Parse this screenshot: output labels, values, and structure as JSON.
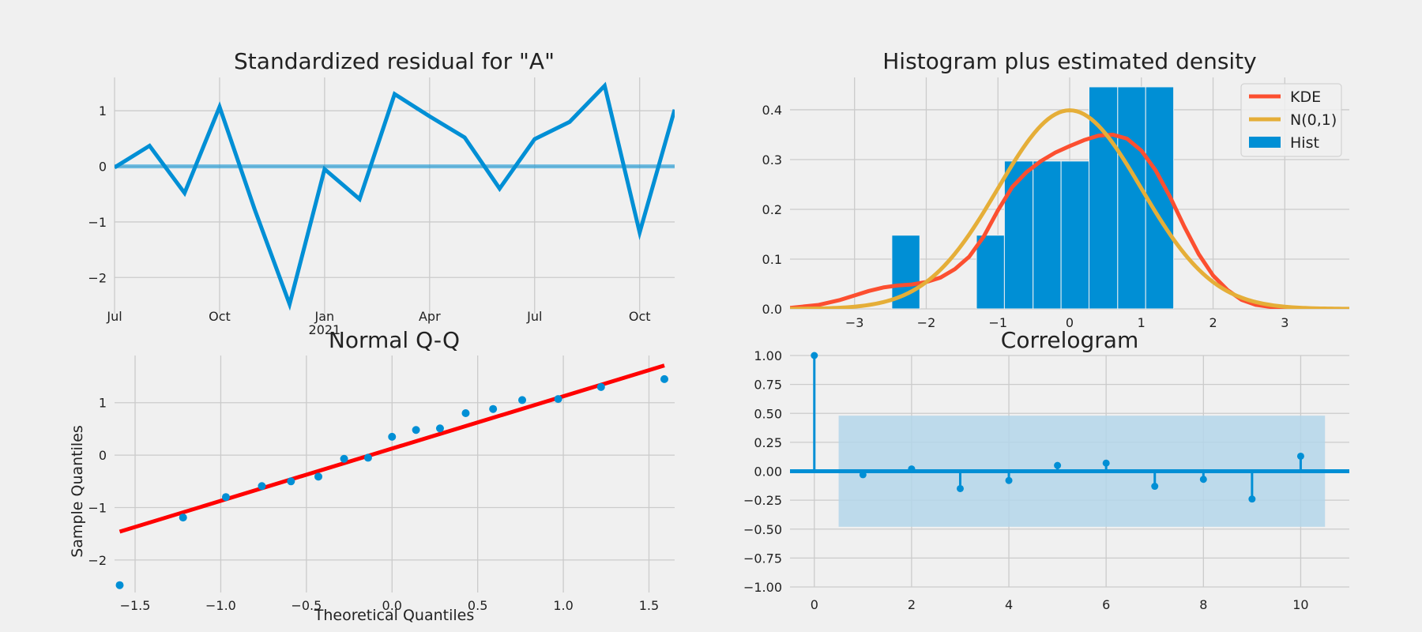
{
  "colors": {
    "background": "#f0f0f0",
    "grid": "#cbcbcb",
    "blue": "#008fd5",
    "kde": "#fc4f30",
    "normal": "#e5ae38",
    "qqline": "#ff0000",
    "confband": "#b4d6ea"
  },
  "chart_data": [
    {
      "id": "resid",
      "type": "line",
      "title": "Standardized residual for \"A\"",
      "x": [
        "2020-07",
        "2020-08",
        "2020-09",
        "2020-10",
        "2020-11",
        "2020-12",
        "2021-01",
        "2021-02",
        "2021-03",
        "2021-04",
        "2021-05",
        "2021-06",
        "2021-07",
        "2021-08",
        "2021-09",
        "2021-10",
        "2021-11"
      ],
      "values": [
        -0.02,
        0.37,
        -0.48,
        1.07,
        -0.77,
        -2.48,
        -0.05,
        -0.59,
        1.3,
        0.9,
        0.52,
        -0.4,
        0.49,
        0.8,
        1.45,
        -1.19,
        1.02
      ],
      "zero_line": 0,
      "xlim": [
        "2020-07",
        "2021-11"
      ],
      "ylim": [
        -2.65,
        1.6
      ],
      "xticks": [
        {
          "pos": 0,
          "label": "Jul",
          "sub": ""
        },
        {
          "pos": 3,
          "label": "Oct",
          "sub": ""
        },
        {
          "pos": 6,
          "label": "Jan",
          "sub": "2021"
        },
        {
          "pos": 9,
          "label": "Apr",
          "sub": ""
        },
        {
          "pos": 12,
          "label": "Jul",
          "sub": ""
        },
        {
          "pos": 15,
          "label": "Oct",
          "sub": ""
        }
      ],
      "yticks": [
        {
          "v": 1,
          "label": "1"
        },
        {
          "v": 0,
          "label": "0"
        },
        {
          "v": -1,
          "label": "−1"
        },
        {
          "v": -2,
          "label": "−2"
        }
      ],
      "grid": true
    },
    {
      "id": "hist",
      "type": "bar",
      "title": "Histogram plus estimated density",
      "xlim": [
        -3.9,
        3.9
      ],
      "ylim": [
        0,
        0.465
      ],
      "xticks": [
        {
          "v": -3,
          "label": "−3"
        },
        {
          "v": -2,
          "label": "−2"
        },
        {
          "v": -1,
          "label": "−1"
        },
        {
          "v": 0,
          "label": "0"
        },
        {
          "v": 1,
          "label": "1"
        },
        {
          "v": 2,
          "label": "2"
        },
        {
          "v": 3,
          "label": "3"
        }
      ],
      "yticks": [
        {
          "v": 0,
          "label": "0.0"
        },
        {
          "v": 0.1,
          "label": "0.1"
        },
        {
          "v": 0.2,
          "label": "0.2"
        },
        {
          "v": 0.3,
          "label": "0.3"
        },
        {
          "v": 0.4,
          "label": "0.4"
        }
      ],
      "bins": [
        {
          "left": -2.48,
          "right": -2.09,
          "height": 0.148
        },
        {
          "left": -1.3,
          "right": -0.91,
          "height": 0.148
        },
        {
          "left": -0.91,
          "right": -0.51,
          "height": 0.297
        },
        {
          "left": -0.51,
          "right": -0.12,
          "height": 0.297
        },
        {
          "left": -0.12,
          "right": 0.27,
          "height": 0.297
        },
        {
          "left": 0.27,
          "right": 0.67,
          "height": 0.446
        },
        {
          "left": 0.67,
          "right": 1.06,
          "height": 0.446
        },
        {
          "left": 1.06,
          "right": 1.45,
          "height": 0.446
        }
      ],
      "kde": {
        "x": [
          -3.9,
          -3.5,
          -3.2,
          -3.0,
          -2.8,
          -2.6,
          -2.4,
          -2.2,
          -2.0,
          -1.8,
          -1.6,
          -1.4,
          -1.2,
          -1.0,
          -0.8,
          -0.6,
          -0.4,
          -0.2,
          0.0,
          0.2,
          0.4,
          0.6,
          0.8,
          1.0,
          1.2,
          1.4,
          1.6,
          1.8,
          2.0,
          2.2,
          2.4,
          2.6,
          2.8,
          3.0,
          3.3,
          3.6,
          3.9
        ],
        "y": [
          0.002,
          0.008,
          0.018,
          0.027,
          0.036,
          0.043,
          0.047,
          0.049,
          0.054,
          0.063,
          0.08,
          0.105,
          0.145,
          0.198,
          0.245,
          0.275,
          0.297,
          0.314,
          0.327,
          0.339,
          0.348,
          0.35,
          0.342,
          0.318,
          0.278,
          0.225,
          0.165,
          0.11,
          0.067,
          0.038,
          0.018,
          0.008,
          0.004,
          0.002,
          0.001,
          0.0,
          0.0
        ]
      },
      "legend": {
        "placement": "top-right",
        "entries": [
          {
            "label": "KDE",
            "kind": "line",
            "color": "#fc4f30"
          },
          {
            "label": "N(0,1)",
            "kind": "line",
            "color": "#e5ae38"
          },
          {
            "label": "Hist",
            "kind": "patch",
            "color": "#008fd5"
          }
        ]
      },
      "grid": true
    },
    {
      "id": "qq",
      "type": "scatter",
      "title": "Normal Q-Q",
      "xlabel": "Theoretical Quantiles",
      "ylabel": "Sample Quantiles",
      "xlim": [
        -1.62,
        1.65
      ],
      "ylim": [
        -2.62,
        1.9
      ],
      "x": [
        -1.59,
        -1.22,
        -0.97,
        -0.76,
        -0.59,
        -0.43,
        -0.28,
        -0.14,
        0.0,
        0.14,
        0.28,
        0.43,
        0.59,
        0.76,
        0.97,
        1.22,
        1.59
      ],
      "y": [
        -2.48,
        -1.19,
        -0.8,
        -0.59,
        -0.5,
        -0.41,
        -0.07,
        -0.05,
        0.35,
        0.48,
        0.51,
        0.8,
        0.88,
        1.05,
        1.07,
        1.3,
        1.45
      ],
      "fit_line": {
        "x": [
          -1.59,
          1.59
        ],
        "y": [
          -1.46,
          1.71
        ]
      },
      "xticks": [
        {
          "v": -1.5,
          "label": "−1.5"
        },
        {
          "v": -1.0,
          "label": "−1.0"
        },
        {
          "v": -0.5,
          "label": "−0.5"
        },
        {
          "v": 0.0,
          "label": "0.0"
        },
        {
          "v": 0.5,
          "label": "0.5"
        },
        {
          "v": 1.0,
          "label": "1.0"
        },
        {
          "v": 1.5,
          "label": "1.5"
        }
      ],
      "yticks": [
        {
          "v": 1,
          "label": "1"
        },
        {
          "v": 0,
          "label": "0"
        },
        {
          "v": -1,
          "label": "−1"
        },
        {
          "v": -2,
          "label": "−2"
        }
      ],
      "grid": true
    },
    {
      "id": "acf",
      "type": "scatter",
      "title": "Correlogram",
      "xlim": [
        -0.5,
        11.0
      ],
      "ylim": [
        -1.0,
        1.0
      ],
      "lags": [
        0,
        1,
        2,
        3,
        4,
        5,
        6,
        7,
        8,
        9,
        10
      ],
      "values": [
        1.0,
        -0.03,
        0.02,
        -0.15,
        -0.08,
        0.05,
        0.07,
        -0.13,
        -0.07,
        -0.24,
        0.13
      ],
      "conf_band": {
        "lag_from": 0.5,
        "lag_to": 10.5,
        "lower": -0.48,
        "upper": 0.48
      },
      "xticks": [
        {
          "v": 0,
          "label": "0"
        },
        {
          "v": 2,
          "label": "2"
        },
        {
          "v": 4,
          "label": "4"
        },
        {
          "v": 6,
          "label": "6"
        },
        {
          "v": 8,
          "label": "8"
        },
        {
          "v": 10,
          "label": "10"
        }
      ],
      "yticks": [
        {
          "v": 1.0,
          "label": "1.00"
        },
        {
          "v": 0.75,
          "label": "0.75"
        },
        {
          "v": 0.5,
          "label": "0.50"
        },
        {
          "v": 0.25,
          "label": "0.25"
        },
        {
          "v": 0.0,
          "label": "0.00"
        },
        {
          "v": -0.25,
          "label": "−0.25"
        },
        {
          "v": -0.5,
          "label": "−0.50"
        },
        {
          "v": -0.75,
          "label": "−0.75"
        },
        {
          "v": -1.0,
          "label": "−1.00"
        }
      ],
      "grid": true
    }
  ]
}
